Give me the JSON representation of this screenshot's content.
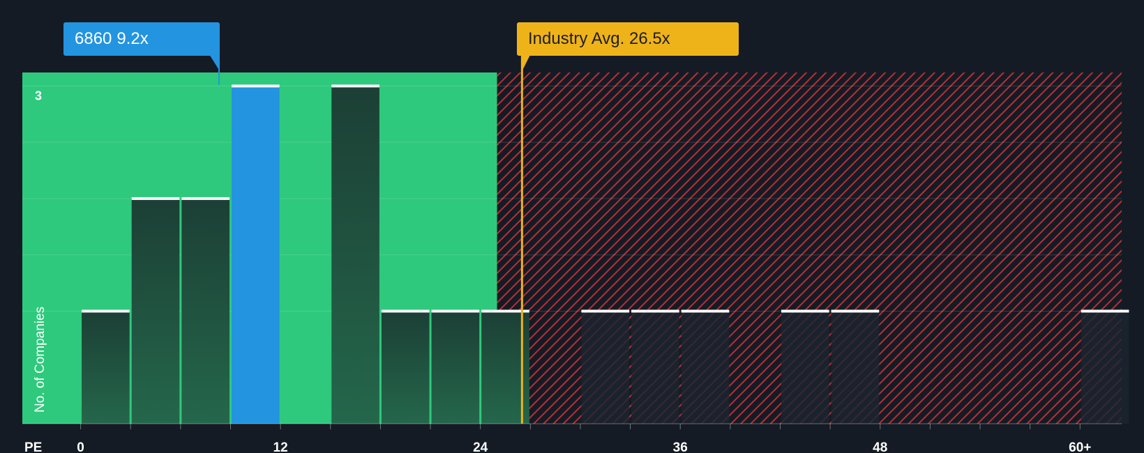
{
  "chart_data": {
    "type": "bar",
    "title": "",
    "xlabel": "PE",
    "ylabel": "No. of Companies",
    "x_range": [
      -3.5,
      62.5
    ],
    "ylim": [
      0,
      3.12
    ],
    "x_ticks": [
      {
        "value": 0,
        "label": "0"
      },
      {
        "value": 12,
        "label": "12"
      },
      {
        "value": 24,
        "label": "24"
      },
      {
        "value": 36,
        "label": "36"
      },
      {
        "value": 48,
        "label": "48"
      },
      {
        "value": 60,
        "label": "60+"
      }
    ],
    "y_ticks": [
      {
        "value": 3,
        "label": "3"
      }
    ],
    "bins": [
      {
        "start": 0,
        "end": 3,
        "count": 1
      },
      {
        "start": 3,
        "end": 6,
        "count": 2
      },
      {
        "start": 6,
        "end": 9,
        "count": 2
      },
      {
        "start": 9,
        "end": 12,
        "count": 3,
        "highlight": true
      },
      {
        "start": 15,
        "end": 18,
        "count": 3
      },
      {
        "start": 18,
        "end": 21,
        "count": 1
      },
      {
        "start": 21,
        "end": 24,
        "count": 1
      },
      {
        "start": 24,
        "end": 27,
        "count": 1
      },
      {
        "start": 30,
        "end": 33,
        "count": 1
      },
      {
        "start": 33,
        "end": 36,
        "count": 1
      },
      {
        "start": 36,
        "end": 39,
        "count": 1
      },
      {
        "start": 42,
        "end": 45,
        "count": 1
      },
      {
        "start": 45,
        "end": 48,
        "count": 1
      },
      {
        "start": 60,
        "end": 63,
        "count": 1
      }
    ],
    "company": {
      "ticker": "6860",
      "value": 9.2,
      "label": "9.2x"
    },
    "industry_avg": {
      "label": "Industry Avg. 26.5x",
      "value": 26.5
    },
    "fair_zone_end": 25,
    "colors": {
      "background": "#151b24",
      "fair_zone": "#2ec97c",
      "expensive_zone": "#b72f36",
      "bar": "#1f4a3a",
      "highlight": "#2394e0",
      "industry": "#efb31a"
    }
  }
}
